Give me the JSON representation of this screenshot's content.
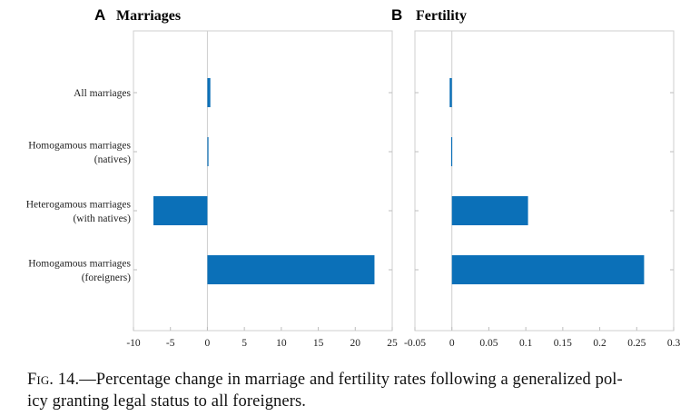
{
  "bar_color": "#0b70b8",
  "caption": {
    "fig_label": "Fig. 14.",
    "line1_rest": "—Percentage change in marriage and fertility rates following a generalized pol-",
    "line2": "icy granting legal status to all foreigners."
  },
  "chart_data": [
    {
      "type": "bar",
      "orientation": "horizontal",
      "panel_letter": "A",
      "title": "Marriages",
      "categories": [
        [
          "All marriages"
        ],
        [
          "Homogamous marriages",
          "(natives)"
        ],
        [
          "Heterogamous marriages",
          "(with natives)"
        ],
        [
          "Homogamous marriages",
          "(foreigners)"
        ]
      ],
      "values": [
        0.4,
        0.05,
        -7.3,
        22.6
      ],
      "xlim": [
        -10,
        25
      ],
      "xticks": [
        -10,
        -5,
        0,
        5,
        10,
        15,
        20,
        25
      ],
      "xtick_labels": [
        "-10",
        "-5",
        "0",
        "5",
        "10",
        "15",
        "20",
        "25"
      ],
      "grid": false
    },
    {
      "type": "bar",
      "orientation": "horizontal",
      "panel_letter": "B",
      "title": "Fertility",
      "categories": [
        [
          "All marriages"
        ],
        [
          "Homogamous marriages",
          "(natives)"
        ],
        [
          "Heterogamous marriages",
          "(with natives)"
        ],
        [
          "Homogamous marriages",
          "(foreigners)"
        ]
      ],
      "values": [
        -0.003,
        -0.001,
        0.103,
        0.26
      ],
      "xlim": [
        -0.05,
        0.3
      ],
      "xticks": [
        -0.05,
        0,
        0.05,
        0.1,
        0.15,
        0.2,
        0.25,
        0.3
      ],
      "xtick_labels": [
        "-0.05",
        "0",
        "0.05",
        "0.1",
        "0.15",
        "0.2",
        "0.25",
        "0.3"
      ],
      "grid": false
    }
  ]
}
